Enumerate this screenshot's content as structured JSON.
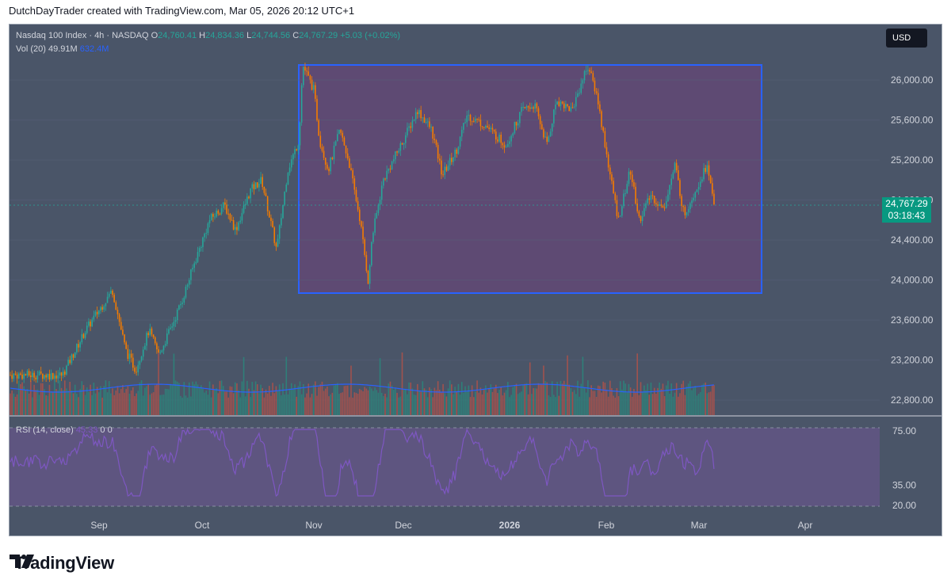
{
  "header": {
    "credit": "DutchDayTrader created with TradingView.com, Mar 05, 2026 20:12 UTC+1"
  },
  "legend": {
    "symbol": "Nasdaq 100 Index · 4h · NASDAQ",
    "o_label": "O",
    "o_value": "24,760.41",
    "h_label": "H",
    "h_value": "24,834.36",
    "l_label": "L",
    "l_value": "24,744.56",
    "c_label": "C",
    "c_value": "24,767.29",
    "change": "+5.03 (+0.02%)"
  },
  "volume": {
    "label": "Vol (20)",
    "value1": "49.91M",
    "value2": "632.4M"
  },
  "rsi": {
    "label": "RSI (14, close)",
    "value": "45.33",
    "v2": "0",
    "v3": "0"
  },
  "currency": "USD",
  "last_price": {
    "price": "24,767.29",
    "countdown": "03:18:43"
  },
  "brand": "TradingView",
  "colors": {
    "up": "#26a69a",
    "down": "#f57c00",
    "box": "#2962ff",
    "rsi": "#7e57c2",
    "vol_ma": "#2962ff"
  },
  "chart_data": {
    "type": "candlestick",
    "price_axis": {
      "ticks": [
        26000,
        25600,
        25200,
        24800,
        24400,
        24000,
        23600,
        23200,
        22800
      ],
      "labels": [
        "26,000.00",
        "25,600.00",
        "25,200.00",
        "24,800.00",
        "24,400.00",
        "24,000.00",
        "23,600.00",
        "23,200.00",
        "22,800.00"
      ]
    },
    "time_axis": {
      "labels": [
        "Sep",
        "Oct",
        "Nov",
        "Dec",
        "2026",
        "Feb",
        "Mar",
        "Apr"
      ]
    },
    "rsi_axis": {
      "labels": [
        "75.00",
        "35.00",
        "20.00"
      ],
      "values": [
        75,
        35,
        20
      ],
      "bands": [
        70,
        30
      ]
    },
    "range_box": {
      "start": "Oct 28",
      "end": "Mar 17",
      "top": 26150,
      "bottom": 23880
    },
    "price_path": [
      [
        "Aug 21",
        23050
      ],
      [
        "Aug 28",
        23500
      ],
      [
        "Sep 2",
        23750
      ],
      [
        "Sep 5",
        23900
      ],
      [
        "Sep 9",
        23300
      ],
      [
        "Sep 12",
        23100
      ],
      [
        "Sep 16",
        23500
      ],
      [
        "Sep 19",
        23250
      ],
      [
        "Sep 23",
        23550
      ],
      [
        "Sep 26",
        23800
      ],
      [
        "Sep 30",
        24200
      ],
      [
        "Oct 3",
        24600
      ],
      [
        "Oct 7",
        24750
      ],
      [
        "Oct 10",
        24500
      ],
      [
        "Oct 14",
        24900
      ],
      [
        "Oct 17",
        25000
      ],
      [
        "Oct 21",
        24300
      ],
      [
        "Oct 24",
        25100
      ],
      [
        "Oct 27",
        25400
      ],
      [
        "Oct 28",
        26150
      ],
      [
        "Oct 31",
        25900
      ],
      [
        "Nov 3",
        25400
      ],
      [
        "Nov 6",
        25100
      ],
      [
        "Nov 10",
        25500
      ],
      [
        "Nov 13",
        25200
      ],
      [
        "Nov 17",
        24600
      ],
      [
        "Nov 20",
        23950
      ],
      [
        "Nov 21",
        24400
      ],
      [
        "Nov 25",
        25000
      ],
      [
        "Dec 1",
        25400
      ],
      [
        "Dec 5",
        25700
      ],
      [
        "Dec 9",
        25500
      ],
      [
        "Dec 12",
        25050
      ],
      [
        "Dec 16",
        25300
      ],
      [
        "Dec 19",
        25650
      ],
      [
        "Dec 24",
        25550
      ],
      [
        "Dec 30",
        25350
      ],
      [
        "Jan 5",
        25700
      ],
      [
        "Jan 9",
        25750
      ],
      [
        "Jan 13",
        25350
      ],
      [
        "Jan 16",
        25800
      ],
      [
        "Jan 21",
        25700
      ],
      [
        "Jan 26",
        26150
      ],
      [
        "Jan 29",
        25850
      ],
      [
        "Feb 2",
        25100
      ],
      [
        "Feb 5",
        24600
      ],
      [
        "Feb 9",
        25100
      ],
      [
        "Feb 12",
        24600
      ],
      [
        "Feb 16",
        24850
      ],
      [
        "Feb 20",
        24700
      ],
      [
        "Feb 24",
        25150
      ],
      [
        "Feb 27",
        24650
      ],
      [
        "Mar 3",
        25150
      ],
      [
        "Mar 5",
        24767
      ]
    ],
    "volume_ma": "blue line across volume histogram",
    "last_price": 24767.29
  }
}
